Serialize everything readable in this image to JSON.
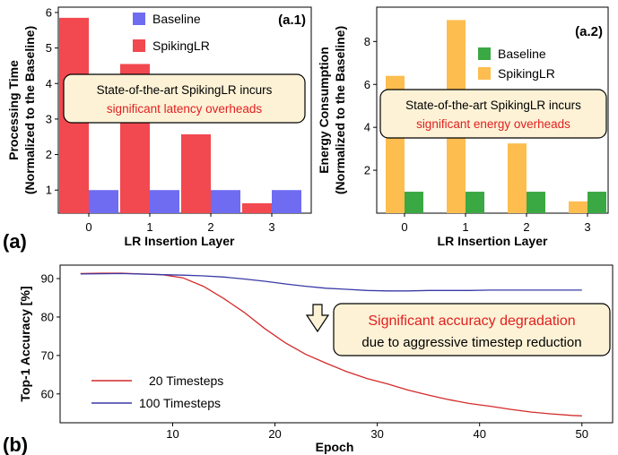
{
  "chart_data": [
    {
      "id": "a1",
      "type": "bar",
      "panel_label": "(a.1)",
      "categories": [
        "0",
        "1",
        "2",
        "3"
      ],
      "series": [
        {
          "name": "Baseline",
          "color": "#6f6cf2",
          "values": [
            1,
            1,
            1,
            1
          ]
        },
        {
          "name": "SpikingLR",
          "color": "#f2484f",
          "values": [
            5.85,
            4.55,
            2.57,
            0.63
          ]
        }
      ],
      "xlabel": "LR Insertion Layer",
      "ylabel_line1": "Processing Time",
      "ylabel_line2": "(Normalized to the Baseline)",
      "yticks": [
        "1",
        "2",
        "3",
        "4",
        "5",
        "6"
      ],
      "ylim": [
        0.35,
        6.15
      ],
      "legend_position": "top-center",
      "annotation": {
        "line1": "State-of-the-art SpikingLR incurs",
        "line2": "significant latency overheads"
      }
    },
    {
      "id": "a2",
      "type": "bar",
      "panel_label": "(a.2)",
      "categories": [
        "0",
        "1",
        "2",
        "3"
      ],
      "series": [
        {
          "name": "Baseline",
          "color": "#3aa843",
          "values": [
            1,
            1,
            1,
            1
          ]
        },
        {
          "name": "SpikingLR",
          "color": "#fdbd4f",
          "values": [
            6.4,
            9.0,
            3.25,
            0.55
          ]
        }
      ],
      "xlabel": "LR Insertion Layer",
      "ylabel_line1": "Energy Consumption",
      "ylabel_line2": "(Normalized to the Baseline)",
      "yticks": [
        "2",
        "4",
        "6",
        "8"
      ],
      "ylim": [
        0,
        9.6
      ],
      "legend_position": "top-right",
      "annotation": {
        "line1": "State-of-the-art SpikingLR incurs",
        "line2": "significant energy overheads"
      }
    },
    {
      "id": "b",
      "type": "line",
      "xlabel": "Epoch",
      "ylabel": "Top-1 Accuracy [%]",
      "xticks": [
        "10",
        "20",
        "30",
        "40",
        "50"
      ],
      "yticks": [
        "60",
        "70",
        "80",
        "90"
      ],
      "xlim": [
        -1,
        53
      ],
      "ylim": [
        52.5,
        93.5
      ],
      "legend_position": "bottom-left",
      "series": [
        {
          "name": "20 Timesteps",
          "color": "#d42a2a",
          "x": [
            1,
            3,
            5,
            7,
            9,
            11,
            13,
            15,
            17,
            19,
            21,
            23,
            25,
            27,
            29,
            31,
            33,
            35,
            37,
            39,
            41,
            43,
            45,
            47,
            49,
            50
          ],
          "y": [
            91.3,
            91.4,
            91.4,
            91.2,
            91.0,
            90.2,
            88.0,
            84.8,
            81.2,
            77.0,
            73.3,
            70.3,
            68.0,
            65.8,
            64.0,
            62.6,
            61.0,
            59.7,
            58.5,
            57.5,
            56.8,
            56.0,
            55.3,
            54.8,
            54.4,
            54.3
          ]
        },
        {
          "name": "100 Timesteps",
          "color": "#3a3aa6",
          "x": [
            1,
            5,
            9,
            11,
            13,
            15,
            17,
            19,
            21,
            23,
            25,
            27,
            29,
            31,
            33,
            35,
            37,
            39,
            41,
            43,
            45,
            47,
            49,
            50
          ],
          "y": [
            91.2,
            91.3,
            91.0,
            90.9,
            90.7,
            90.4,
            89.9,
            89.3,
            88.6,
            88.0,
            87.5,
            87.2,
            86.9,
            86.8,
            86.8,
            86.9,
            86.9,
            86.9,
            87.0,
            87.0,
            87.0,
            87.0,
            87.0,
            87.0
          ]
        }
      ],
      "annotation": {
        "line1": "Significant accuracy degradation",
        "line2": "due to aggressive timestep reduction"
      }
    }
  ],
  "panels": {
    "a": "(a)",
    "b": "(b)"
  }
}
